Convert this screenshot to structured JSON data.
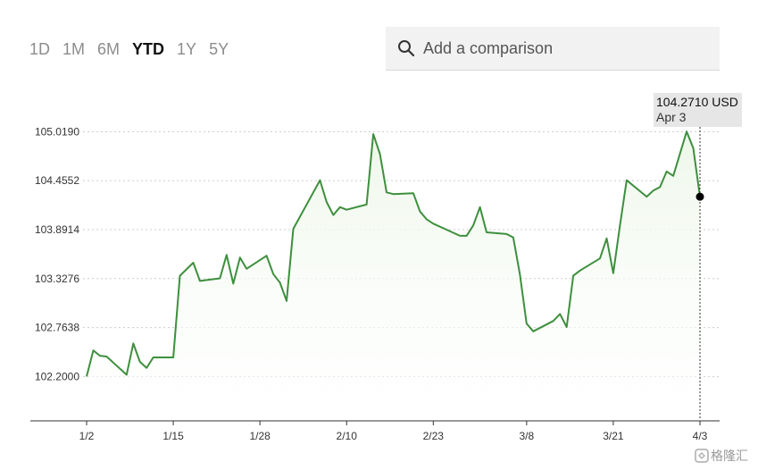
{
  "range_tabs": [
    {
      "label": "1D",
      "active": false
    },
    {
      "label": "1M",
      "active": false
    },
    {
      "label": "6M",
      "active": false
    },
    {
      "label": "YTD",
      "active": true
    },
    {
      "label": "1Y",
      "active": false
    },
    {
      "label": "5Y",
      "active": false
    }
  ],
  "search": {
    "placeholder": "Add a comparison",
    "icon": "search-icon"
  },
  "tooltip": {
    "value": "104.2710 USD",
    "date": "Apr 3"
  },
  "watermark": {
    "text": "格隆汇"
  },
  "colors": {
    "line": "#3d8f3d",
    "fill": "#eef7ea",
    "grid": "#cccccc",
    "axis": "#333333",
    "marker": "#000000"
  },
  "chart_data": {
    "type": "line",
    "title": "",
    "xlabel": "",
    "ylabel": "",
    "grid": true,
    "ylim": [
      101.7,
      105.3
    ],
    "xlim": [
      "2024-01-02",
      "2024-04-03"
    ],
    "y_ticks": [
      "105.0190",
      "104.4552",
      "103.8914",
      "103.3276",
      "102.7638",
      "102.2000"
    ],
    "x_ticks": [
      {
        "label": "1/2",
        "date": "2024-01-02"
      },
      {
        "label": "1/15",
        "date": "2024-01-15"
      },
      {
        "label": "1/28",
        "date": "2024-01-28"
      },
      {
        "label": "2/10",
        "date": "2024-02-10"
      },
      {
        "label": "2/23",
        "date": "2024-02-23"
      },
      {
        "label": "3/8",
        "date": "2024-03-08"
      },
      {
        "label": "3/21",
        "date": "2024-03-21"
      },
      {
        "label": "4/3",
        "date": "2024-04-03"
      }
    ],
    "series": [
      {
        "name": "",
        "points": [
          [
            "2024-01-02",
            102.2
          ],
          [
            "2024-01-03",
            102.5
          ],
          [
            "2024-01-04",
            102.44
          ],
          [
            "2024-01-05",
            102.43
          ],
          [
            "2024-01-08",
            102.22
          ],
          [
            "2024-01-09",
            102.58
          ],
          [
            "2024-01-10",
            102.37
          ],
          [
            "2024-01-11",
            102.3
          ],
          [
            "2024-01-12",
            102.42
          ],
          [
            "2024-01-15",
            102.42
          ],
          [
            "2024-01-16",
            103.36
          ],
          [
            "2024-01-18",
            103.51
          ],
          [
            "2024-01-19",
            103.3
          ],
          [
            "2024-01-22",
            103.33
          ],
          [
            "2024-01-23",
            103.6
          ],
          [
            "2024-01-24",
            103.27
          ],
          [
            "2024-01-25",
            103.57
          ],
          [
            "2024-01-26",
            103.44
          ],
          [
            "2024-01-29",
            103.59
          ],
          [
            "2024-01-30",
            103.38
          ],
          [
            "2024-01-31",
            103.28
          ],
          [
            "2024-02-01",
            103.07
          ],
          [
            "2024-02-02",
            103.9
          ],
          [
            "2024-02-06",
            104.46
          ],
          [
            "2024-02-07",
            104.21
          ],
          [
            "2024-02-08",
            104.06
          ],
          [
            "2024-02-09",
            104.15
          ],
          [
            "2024-02-10",
            104.12
          ],
          [
            "2024-02-13",
            104.18
          ],
          [
            "2024-02-14",
            104.99
          ],
          [
            "2024-02-15",
            104.76
          ],
          [
            "2024-02-16",
            104.32
          ],
          [
            "2024-02-17",
            104.3
          ],
          [
            "2024-02-20",
            104.31
          ],
          [
            "2024-02-21",
            104.1
          ],
          [
            "2024-02-22",
            104.01
          ],
          [
            "2024-02-23",
            103.96
          ],
          [
            "2024-02-27",
            103.82
          ],
          [
            "2024-02-28",
            103.82
          ],
          [
            "2024-02-29",
            103.94
          ],
          [
            "2024-03-01",
            104.15
          ],
          [
            "2024-03-02",
            103.86
          ],
          [
            "2024-03-05",
            103.84
          ],
          [
            "2024-03-06",
            103.8
          ],
          [
            "2024-03-07",
            103.37
          ],
          [
            "2024-03-08",
            102.81
          ],
          [
            "2024-03-09",
            102.72
          ],
          [
            "2024-03-12",
            102.84
          ],
          [
            "2024-03-13",
            102.92
          ],
          [
            "2024-03-14",
            102.77
          ],
          [
            "2024-03-15",
            103.36
          ],
          [
            "2024-03-16",
            103.42
          ],
          [
            "2024-03-19",
            103.56
          ],
          [
            "2024-03-20",
            103.79
          ],
          [
            "2024-03-21",
            103.39
          ],
          [
            "2024-03-22",
            103.94
          ],
          [
            "2024-03-23",
            104.46
          ],
          [
            "2024-03-26",
            104.27
          ],
          [
            "2024-03-27",
            104.34
          ],
          [
            "2024-03-28",
            104.38
          ],
          [
            "2024-03-29",
            104.56
          ],
          [
            "2024-03-30",
            104.51
          ],
          [
            "2024-04-01",
            105.02
          ],
          [
            "2024-04-02",
            104.83
          ],
          [
            "2024-04-03",
            104.27
          ]
        ]
      }
    ]
  }
}
